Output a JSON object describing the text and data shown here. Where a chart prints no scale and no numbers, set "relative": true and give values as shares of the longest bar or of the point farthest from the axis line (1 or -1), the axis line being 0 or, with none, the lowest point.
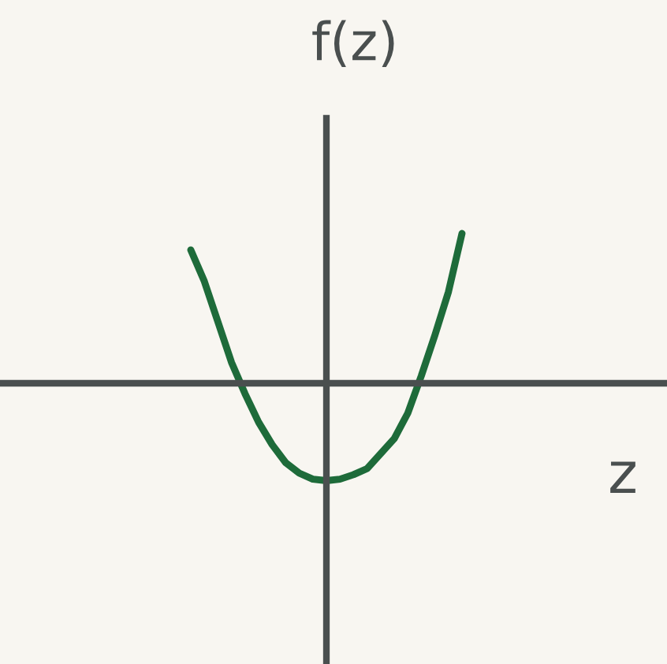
{
  "chart_data": {
    "type": "line",
    "relative": true,
    "xlabel": "z",
    "ylabel": "f(z)",
    "categories": [
      null,
      null,
      null,
      null,
      null,
      null,
      null,
      null,
      null,
      null,
      null,
      null,
      null,
      null,
      null,
      null,
      null,
      null,
      null,
      null,
      null
    ],
    "series": [
      {
        "color": "#1e6b3a",
        "values": [
          0.89,
          0.68,
          0.41,
          0.14,
          -0.07,
          -0.26,
          -0.41,
          -0.53,
          -0.6,
          -0.64,
          -0.65,
          -0.64,
          -0.61,
          -0.57,
          -0.47,
          -0.37,
          -0.2,
          0.05,
          0.32,
          0.61,
          1.0
        ]
      }
    ],
    "marker": "none",
    "line_style": "solid",
    "grid": false,
    "legend": false
  }
}
